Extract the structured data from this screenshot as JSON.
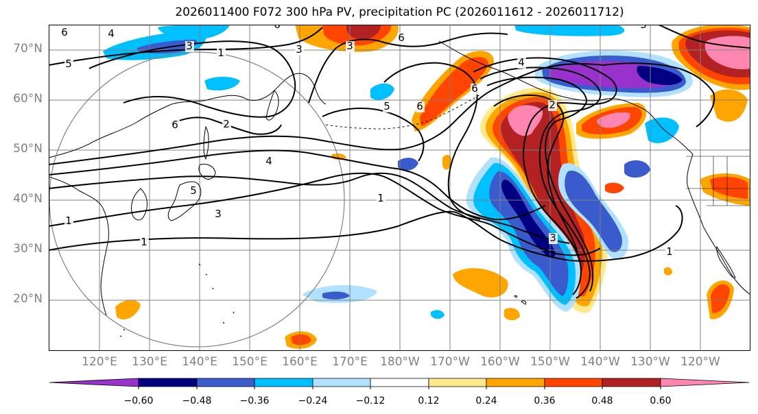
{
  "title": "2026011400 F072 300 hPa PV, precipitation PC (2026011612 - 2026011712)",
  "map": {
    "type": "filled-contour-map",
    "region": "North Pacific",
    "fill_variable": "precipitation PC",
    "contour_variable": "300 hPa PV",
    "latitude_labels": [
      "70°N",
      "60°N",
      "50°N",
      "40°N",
      "30°N",
      "20°N"
    ],
    "longitude_labels": [
      "120°E",
      "130°E",
      "140°E",
      "150°E",
      "160°E",
      "170°E",
      "180°W",
      "170°W",
      "160°W",
      "150°W",
      "140°W",
      "130°W",
      "120°W"
    ],
    "contour_labels": [
      "1",
      "2",
      "3",
      "4",
      "5",
      "6"
    ],
    "colors": {
      "coastline": "#000000",
      "gridline": "#808080",
      "pv_contour": "#000000",
      "circle": "#808080",
      "map_background": "#ffffff"
    }
  },
  "colorbar": {
    "tick_labels": [
      "−0.60",
      "−0.48",
      "−0.36",
      "−0.24",
      "−0.12",
      "0.12",
      "0.24",
      "0.36",
      "0.48",
      "0.60"
    ],
    "bins": [
      {
        "range": "< -0.60",
        "color": "#9932cc"
      },
      {
        "range": "-0.60 to -0.48",
        "color": "#000080"
      },
      {
        "range": "-0.48 to -0.36",
        "color": "#3a5bcc"
      },
      {
        "range": "-0.36 to -0.24",
        "color": "#00bfff"
      },
      {
        "range": "-0.24 to -0.12",
        "color": "#b0e2ff"
      },
      {
        "range": "-0.12 to 0.12",
        "color": "#ffffff"
      },
      {
        "range": "0.12 to 0.24",
        "color": "#ffe98a"
      },
      {
        "range": "0.24 to 0.36",
        "color": "#ffa500"
      },
      {
        "range": "0.36 to 0.48",
        "color": "#ff4500"
      },
      {
        "range": "0.48 to 0.60",
        "color": "#b22222"
      },
      {
        "range": "> 0.60",
        "color": "#ff86b0"
      }
    ]
  }
}
